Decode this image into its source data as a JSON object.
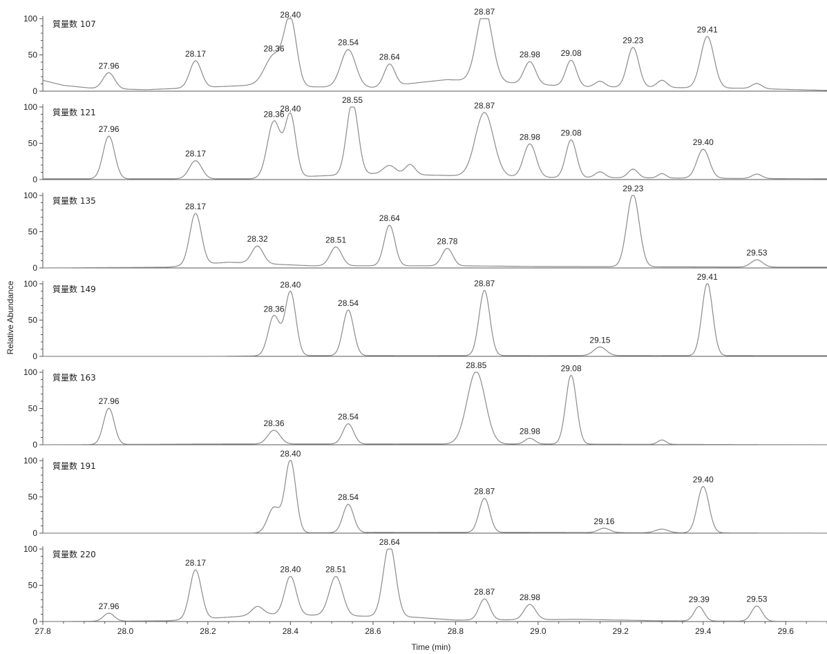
{
  "chart_data": {
    "type": "line",
    "xlabel": "Time (min)",
    "ylabel": "Relative Abundance",
    "xlim": [
      27.8,
      29.7
    ],
    "x_ticks": [
      "27.8",
      "28.0",
      "28.2",
      "28.4",
      "28.6",
      "28.8",
      "29.0",
      "29.2",
      "29.4",
      "29.6"
    ],
    "y_ticks": [
      "0",
      "50",
      "100"
    ],
    "ylim": [
      0,
      100
    ],
    "grid": false,
    "line_color": "#8a8a8a",
    "panels": [
      {
        "label": "質量数 107",
        "baseline": [
          [
            27.8,
            15
          ],
          [
            27.85,
            8
          ],
          [
            27.92,
            4
          ],
          [
            28.05,
            2
          ],
          [
            28.3,
            8
          ],
          [
            28.45,
            6
          ],
          [
            28.6,
            5
          ],
          [
            28.78,
            16
          ],
          [
            29.1,
            6
          ],
          [
            29.5,
            4
          ],
          [
            29.7,
            1
          ]
        ],
        "peaks": [
          {
            "rt": 27.96,
            "label": "27.96",
            "height": 22,
            "width": 0.014
          },
          {
            "rt": 28.17,
            "label": "28.17",
            "height": 37,
            "width": 0.014
          },
          {
            "rt": 28.36,
            "label": "28.36",
            "height": 42,
            "width": 0.022
          },
          {
            "rt": 28.4,
            "label": "28.40",
            "height": 89,
            "width": 0.015
          },
          {
            "rt": 28.54,
            "label": "28.54",
            "height": 52,
            "width": 0.018
          },
          {
            "rt": 28.64,
            "label": "28.64",
            "height": 30,
            "width": 0.013
          },
          {
            "rt": 28.87,
            "label": "28.87",
            "height": 100,
            "width": 0.019
          },
          {
            "rt": 28.98,
            "label": "28.98",
            "height": 31,
            "width": 0.014
          },
          {
            "rt": 29.08,
            "label": "29.08",
            "height": 36,
            "width": 0.013
          },
          {
            "rt": 29.15,
            "label": "",
            "height": 8,
            "width": 0.012
          },
          {
            "rt": 29.23,
            "label": "29.23",
            "height": 55,
            "width": 0.014
          },
          {
            "rt": 29.3,
            "label": "",
            "height": 10,
            "width": 0.012
          },
          {
            "rt": 29.41,
            "label": "29.41",
            "height": 71,
            "width": 0.016
          },
          {
            "rt": 29.53,
            "label": "",
            "height": 7,
            "width": 0.012
          }
        ]
      },
      {
        "label": "質量数 121",
        "baseline": [
          [
            27.8,
            1
          ],
          [
            28.3,
            1
          ],
          [
            28.6,
            8
          ],
          [
            28.75,
            6
          ],
          [
            29.0,
            3
          ],
          [
            29.7,
            1
          ]
        ],
        "peaks": [
          {
            "rt": 27.96,
            "label": "27.96",
            "height": 59,
            "width": 0.014
          },
          {
            "rt": 28.17,
            "label": "28.17",
            "height": 25,
            "width": 0.015
          },
          {
            "rt": 28.36,
            "label": "28.36",
            "height": 78,
            "width": 0.016
          },
          {
            "rt": 28.4,
            "label": "28.40",
            "height": 85,
            "width": 0.013
          },
          {
            "rt": 28.55,
            "label": "28.55",
            "height": 100,
            "width": 0.014
          },
          {
            "rt": 28.64,
            "label": "",
            "height": 12,
            "width": 0.015
          },
          {
            "rt": 28.69,
            "label": "",
            "height": 14,
            "width": 0.012
          },
          {
            "rt": 28.87,
            "label": "28.87",
            "height": 88,
            "width": 0.022
          },
          {
            "rt": 28.98,
            "label": "28.98",
            "height": 46,
            "width": 0.015
          },
          {
            "rt": 29.08,
            "label": "29.08",
            "height": 52,
            "width": 0.013
          },
          {
            "rt": 29.15,
            "label": "",
            "height": 8,
            "width": 0.012
          },
          {
            "rt": 29.23,
            "label": "",
            "height": 12,
            "width": 0.012
          },
          {
            "rt": 29.3,
            "label": "",
            "height": 6,
            "width": 0.01
          },
          {
            "rt": 29.4,
            "label": "29.40",
            "height": 40,
            "width": 0.015
          },
          {
            "rt": 29.53,
            "label": "",
            "height": 6,
            "width": 0.012
          }
        ]
      },
      {
        "label": "質量数 135",
        "baseline": [
          [
            27.8,
            0
          ],
          [
            28.1,
            1
          ],
          [
            28.25,
            8
          ],
          [
            28.45,
            3
          ],
          [
            28.8,
            3
          ],
          [
            29.0,
            2
          ],
          [
            29.7,
            1
          ]
        ],
        "peaks": [
          {
            "rt": 28.17,
            "label": "28.17",
            "height": 71,
            "width": 0.014
          },
          {
            "rt": 28.32,
            "label": "28.32",
            "height": 24,
            "width": 0.014
          },
          {
            "rt": 28.51,
            "label": "28.51",
            "height": 26,
            "width": 0.014
          },
          {
            "rt": 28.64,
            "label": "28.64",
            "height": 56,
            "width": 0.013
          },
          {
            "rt": 28.78,
            "label": "28.78",
            "height": 24,
            "width": 0.013
          },
          {
            "rt": 29.23,
            "label": "29.23",
            "height": 100,
            "width": 0.015
          },
          {
            "rt": 29.53,
            "label": "29.53",
            "height": 10,
            "width": 0.014
          }
        ]
      },
      {
        "label": "質量数 149",
        "baseline": [
          [
            27.8,
            0
          ],
          [
            28.2,
            0
          ],
          [
            28.4,
            1
          ],
          [
            29.0,
            1
          ],
          [
            29.7,
            1
          ]
        ],
        "peaks": [
          {
            "rt": 28.36,
            "label": "28.36",
            "height": 55,
            "width": 0.014
          },
          {
            "rt": 28.4,
            "label": "28.40",
            "height": 88,
            "width": 0.013
          },
          {
            "rt": 28.54,
            "label": "28.54",
            "height": 63,
            "width": 0.013
          },
          {
            "rt": 28.87,
            "label": "28.87",
            "height": 90,
            "width": 0.013
          },
          {
            "rt": 29.15,
            "label": "29.15",
            "height": 12,
            "width": 0.015
          },
          {
            "rt": 29.41,
            "label": "29.41",
            "height": 100,
            "width": 0.013
          }
        ]
      },
      {
        "label": "質量数 163",
        "baseline": [
          [
            27.8,
            0
          ],
          [
            28.2,
            1
          ],
          [
            28.5,
            1
          ],
          [
            29.0,
            1
          ],
          [
            29.7,
            0
          ]
        ],
        "peaks": [
          {
            "rt": 27.96,
            "label": "27.96",
            "height": 50,
            "width": 0.013
          },
          {
            "rt": 28.36,
            "label": "28.36",
            "height": 19,
            "width": 0.015
          },
          {
            "rt": 28.54,
            "label": "28.54",
            "height": 28,
            "width": 0.013
          },
          {
            "rt": 28.85,
            "label": "28.85",
            "height": 100,
            "width": 0.022
          },
          {
            "rt": 28.98,
            "label": "28.98",
            "height": 8,
            "width": 0.012
          },
          {
            "rt": 29.08,
            "label": "29.08",
            "height": 95,
            "width": 0.013
          },
          {
            "rt": 29.3,
            "label": "",
            "height": 6,
            "width": 0.01
          }
        ]
      },
      {
        "label": "質量数 191",
        "baseline": [
          [
            27.8,
            0
          ],
          [
            28.3,
            0
          ],
          [
            28.6,
            1
          ],
          [
            29.0,
            1
          ],
          [
            29.7,
            0
          ]
        ],
        "peaks": [
          {
            "rt": 28.36,
            "label": "",
            "height": 35,
            "width": 0.015
          },
          {
            "rt": 28.4,
            "label": "28.40",
            "height": 100,
            "width": 0.013
          },
          {
            "rt": 28.54,
            "label": "28.54",
            "height": 39,
            "width": 0.013
          },
          {
            "rt": 28.87,
            "label": "28.87",
            "height": 47,
            "width": 0.013
          },
          {
            "rt": 29.16,
            "label": "29.16",
            "height": 6,
            "width": 0.014
          },
          {
            "rt": 29.3,
            "label": "",
            "height": 5,
            "width": 0.015
          },
          {
            "rt": 29.4,
            "label": "29.40",
            "height": 64,
            "width": 0.014
          }
        ]
      },
      {
        "label": "質量数 220",
        "baseline": [
          [
            27.8,
            0
          ],
          [
            28.1,
            1
          ],
          [
            28.25,
            6
          ],
          [
            28.35,
            10
          ],
          [
            28.7,
            6
          ],
          [
            28.8,
            2
          ],
          [
            29.1,
            3
          ],
          [
            29.3,
            1
          ],
          [
            29.7,
            0
          ]
        ],
        "peaks": [
          {
            "rt": 27.96,
            "label": "27.96",
            "height": 11,
            "width": 0.013
          },
          {
            "rt": 28.17,
            "label": "28.17",
            "height": 68,
            "width": 0.014
          },
          {
            "rt": 28.32,
            "label": "",
            "height": 12,
            "width": 0.014
          },
          {
            "rt": 28.4,
            "label": "28.40",
            "height": 53,
            "width": 0.014
          },
          {
            "rt": 28.51,
            "label": "28.51",
            "height": 54,
            "width": 0.016
          },
          {
            "rt": 28.64,
            "label": "28.64",
            "height": 100,
            "width": 0.015
          },
          {
            "rt": 28.87,
            "label": "28.87",
            "height": 29,
            "width": 0.013
          },
          {
            "rt": 28.98,
            "label": "28.98",
            "height": 21,
            "width": 0.014
          },
          {
            "rt": 29.39,
            "label": "29.39",
            "height": 20,
            "width": 0.012
          },
          {
            "rt": 29.53,
            "label": "29.53",
            "height": 21,
            "width": 0.013
          }
        ]
      }
    ]
  }
}
